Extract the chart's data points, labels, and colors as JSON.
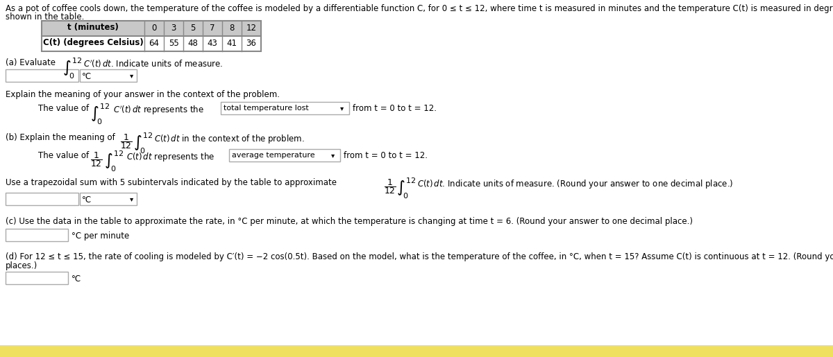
{
  "bg_color": "#ffffff",
  "table_header": [
    "t (minutes)",
    "0",
    "3",
    "5",
    "7",
    "8",
    "12"
  ],
  "table_data": [
    "C(t) (degrees Celsius)",
    "64",
    "55",
    "48",
    "43",
    "41",
    "36"
  ],
  "table_header_bg": "#c8c8c8",
  "table_border": "#888888",
  "font_size": 8.5,
  "small_font": 7.5,
  "text_color": "#000000",
  "box_edge_color": "#aaaaaa",
  "box_face_color": "#ffffff",
  "bottom_bar_color": "#f0e87a"
}
